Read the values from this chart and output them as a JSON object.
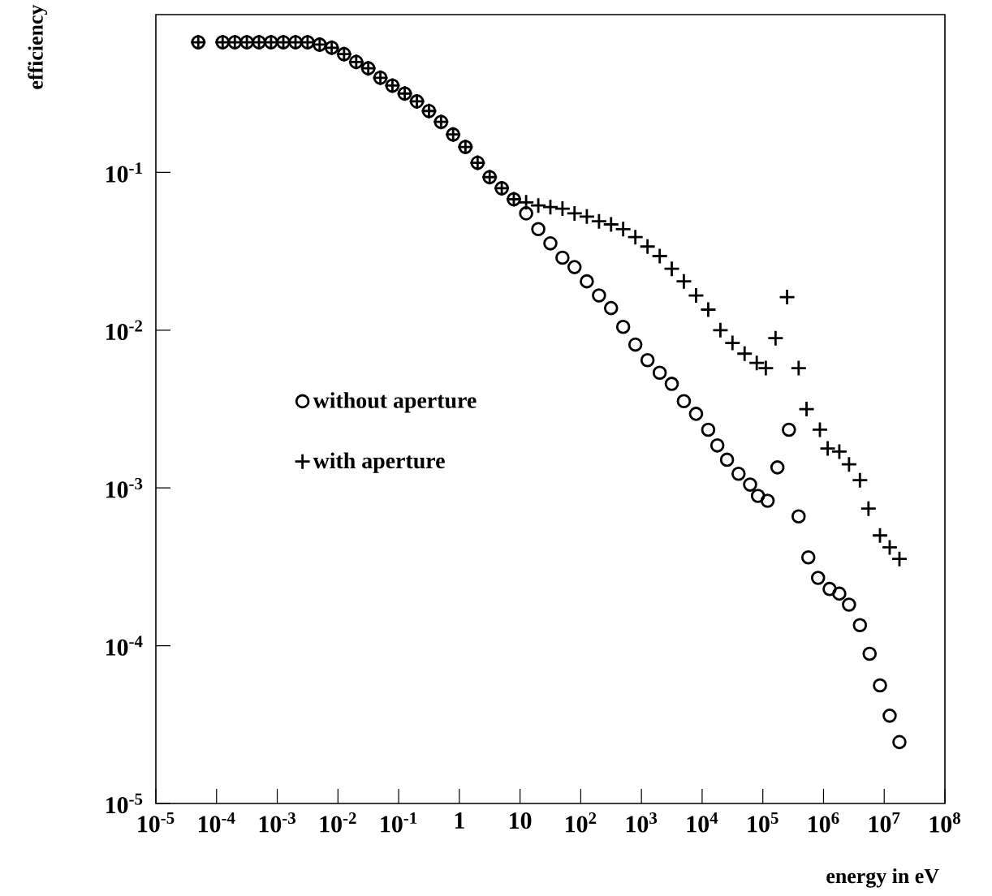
{
  "chart_data": {
    "type": "scatter",
    "xlabel": "energy in eV",
    "ylabel": "efficiency",
    "log": "xy",
    "legend": "left",
    "xlim": [
      1e-05,
      100000000
    ],
    "ylim": [
      1e-05,
      1
    ],
    "xticks": [
      {
        "value": 1e-05,
        "label": "10$^{-5}$"
      },
      {
        "value": 0.0001,
        "label": "10$^{-4}$"
      },
      {
        "value": 0.001,
        "label": "10$^{-3}$"
      },
      {
        "value": 0.01,
        "label": "10$^{-2}$"
      },
      {
        "value": 0.1,
        "label": "10$^{-1}$"
      },
      1,
      10,
      {
        "value": 100,
        "label": "10$^{2}$"
      },
      {
        "value": 1000,
        "label": "10$^{3}$"
      },
      {
        "value": 10000,
        "label": "10$^{4}$"
      },
      {
        "value": 100000,
        "label": "10$^{5}$"
      },
      {
        "value": 1000000,
        "label": "10$^{6}$"
      },
      {
        "value": 10000000,
        "label": "10$^{7}$"
      },
      {
        "value": 100000000,
        "label": "10$^{8}$"
      }
    ],
    "yticks": [
      {
        "value": 1e-05,
        "label": "10$^{-5}$"
      },
      {
        "value": 0.0001,
        "label": "10$^{-4}$"
      },
      {
        "value": 0.001,
        "label": "10$^{-3}$"
      },
      {
        "value": 0.01,
        "label": "10$^{-2}$"
      },
      {
        "value": 0.1,
        "label": "10$^{-1}$"
      }
    ],
    "series": [
      {
        "name": "without aperture",
        "color": "#000000",
        "marker": "circle",
        "x": [
          5e-05,
          0.000126,
          0.0002,
          0.000316,
          0.0005,
          0.00079,
          0.00126,
          0.002,
          0.00316,
          0.005,
          0.0079,
          0.0126,
          0.02,
          0.0316,
          0.05,
          0.079,
          0.126,
          0.2,
          0.316,
          0.5,
          0.79,
          1.26,
          2.0,
          3.16,
          5.0,
          7.9,
          12.6,
          20,
          31.6,
          50,
          79,
          126,
          200,
          316,
          500,
          794,
          1260,
          2000,
          3160,
          5000,
          7940,
          12600,
          17800,
          25700,
          39800,
          61700,
          83200,
          120000,
          174000,
          269000,
          389000,
          562000,
          813000,
          1260000,
          1820000,
          2630000,
          3980000,
          5750000,
          8510000,
          12300000,
          17800000
        ],
        "values": [
          0.668,
          0.668,
          0.668,
          0.668,
          0.668,
          0.668,
          0.668,
          0.668,
          0.668,
          0.646,
          0.617,
          0.562,
          0.501,
          0.457,
          0.398,
          0.355,
          0.316,
          0.282,
          0.245,
          0.209,
          0.174,
          0.145,
          0.115,
          0.0933,
          0.0794,
          0.0676,
          0.055,
          0.0437,
          0.0355,
          0.0288,
          0.0251,
          0.0204,
          0.0166,
          0.0138,
          0.0105,
          0.0081,
          0.00646,
          0.00537,
          0.00457,
          0.00355,
          0.00295,
          0.00234,
          0.00186,
          0.00151,
          0.00123,
          0.00105,
          0.00089,
          0.00083,
          0.00135,
          0.00234,
          0.00066,
          0.000363,
          0.000269,
          0.000229,
          0.000214,
          0.000182,
          0.000135,
          8.9e-05,
          5.6e-05,
          3.6e-05,
          2.45e-05
        ]
      },
      {
        "name": "with aperture",
        "color": "#000000",
        "marker": "cross",
        "x": [
          5e-05,
          0.000126,
          0.0002,
          0.000316,
          0.0005,
          0.00079,
          0.00126,
          0.002,
          0.00316,
          0.005,
          0.0079,
          0.0126,
          0.02,
          0.0316,
          0.05,
          0.079,
          0.126,
          0.2,
          0.316,
          0.5,
          0.79,
          1.26,
          2.0,
          3.16,
          5.0,
          7.9,
          12.6,
          20,
          31.6,
          50,
          79,
          126,
          200,
          316,
          500,
          794,
          1260,
          2000,
          3160,
          5000,
          7940,
          12600,
          20000,
          31600,
          50100,
          79400,
          112000,
          162000,
          251000,
          389000,
          525000,
          871000,
          1170000,
          1820000,
          2630000,
          3980000,
          5500000,
          8510000,
          12300000,
          17800000
        ],
        "values": [
          0.668,
          0.668,
          0.668,
          0.668,
          0.668,
          0.668,
          0.668,
          0.668,
          0.668,
          0.646,
          0.617,
          0.562,
          0.501,
          0.457,
          0.398,
          0.355,
          0.316,
          0.282,
          0.245,
          0.209,
          0.174,
          0.145,
          0.115,
          0.0933,
          0.0794,
          0.0676,
          0.0646,
          0.0617,
          0.0603,
          0.0589,
          0.055,
          0.0525,
          0.049,
          0.0468,
          0.0437,
          0.0389,
          0.0339,
          0.0295,
          0.0245,
          0.0204,
          0.0166,
          0.0135,
          0.01,
          0.0083,
          0.0071,
          0.0062,
          0.00575,
          0.0089,
          0.0162,
          0.00575,
          0.00316,
          0.00234,
          0.00178,
          0.0017,
          0.00141,
          0.00112,
          0.00074,
          0.0005,
          0.00042,
          0.000355
        ]
      }
    ]
  }
}
